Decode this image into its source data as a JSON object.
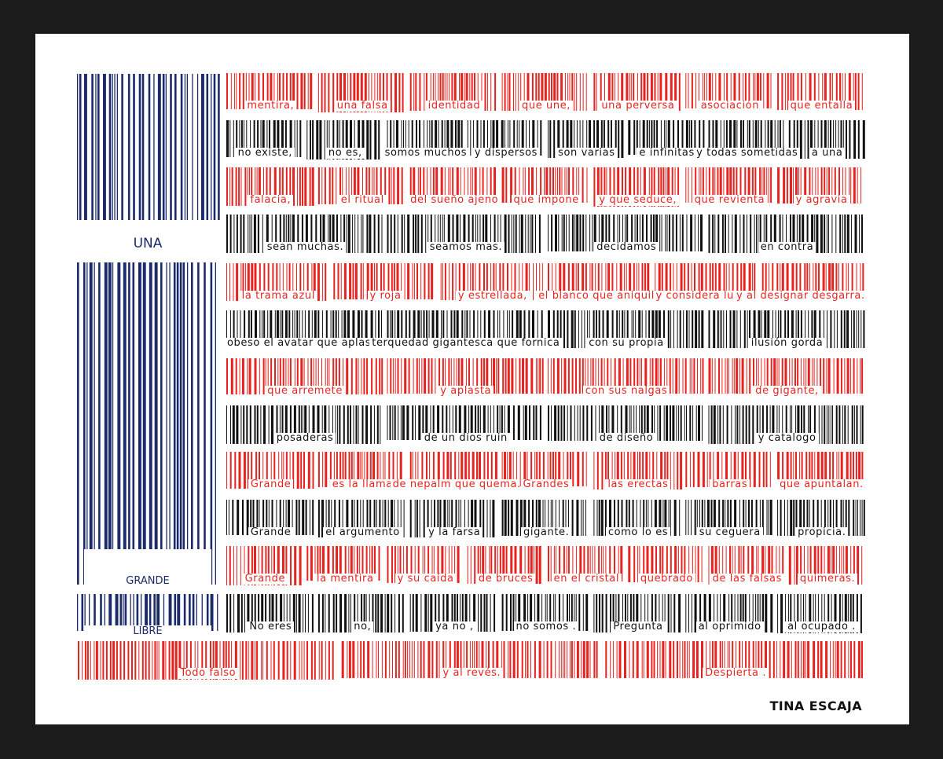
{
  "colors": {
    "red": "#e8231f",
    "black": "#111111",
    "blue": "#1b2a6b",
    "frame": "#1b1b1b",
    "paper": "#ffffff"
  },
  "union": {
    "label_1": "UNA",
    "label_2": "GRANDE",
    "label_3": "LIBRE"
  },
  "stripes": [
    {
      "color": "red",
      "phrases": [
        "mentira,",
        "una falsa",
        "identidad",
        "que une,",
        "una perversa",
        "asociación",
        "que entalla"
      ]
    },
    {
      "color": "black",
      "phrases": [
        "no existe,",
        "no es,",
        "somos muchos",
        "y dispersos",
        "son varias",
        "e infinitas",
        "y todas sometidas",
        "a una"
      ]
    },
    {
      "color": "red",
      "phrases": [
        "falacia,",
        "el ritual",
        "del sueño ajeno",
        "que impone",
        "y que seduce,",
        "que revienta",
        "y agravia"
      ]
    },
    {
      "color": "black",
      "phrases": [
        "sean muchas.",
        "seamos mas.",
        "decidamos",
        "en contra"
      ]
    },
    {
      "color": "red",
      "phrases": [
        "la trama azul",
        "y roja",
        "y estrellada,",
        "el blanco que aniquila",
        "y considera luego,",
        "y al designar desgarra."
      ]
    },
    {
      "color": "black",
      "phrases": [
        "obeso el avatar que aplasta y manipula,",
        "terquedad gigantesca que fornica",
        "con su propia",
        "ilusión gorda"
      ]
    },
    {
      "color": "red",
      "phrases": [
        "que arremete",
        "y aplasta",
        "con sus nalgas",
        "de gigante,"
      ]
    },
    {
      "color": "black",
      "phrases": [
        "posaderas",
        "de un dios ruin",
        "de diseño",
        "y catalogo"
      ]
    },
    {
      "color": "red",
      "phrases": [
        "Grande",
        "es la llama",
        "de nepalm que quema.",
        "Grandes",
        "las erectas",
        "barras",
        "que apuntalan."
      ]
    },
    {
      "color": "black",
      "phrases": [
        "Grande",
        "el argumento",
        "y la farsa",
        "gigante.",
        "como lo es",
        "su ceguera",
        "propicia."
      ]
    },
    {
      "color": "red",
      "phrases": [
        "Grande",
        "la mentira",
        "y su caída",
        "de bruces",
        "en el cristal",
        "quebrado",
        "de las falsas",
        "quimeras."
      ]
    },
    {
      "color": "black",
      "phrases": [
        "No eres",
        "no,",
        "ya no ,",
        "no somos .",
        "Pregunta",
        "al oprimido",
        "al ocupado ."
      ]
    },
    {
      "color": "red",
      "phrases": [
        "Todo falso",
        "y al revés.",
        "Despierta ."
      ]
    }
  ],
  "signature": "TINA ESCAJA"
}
